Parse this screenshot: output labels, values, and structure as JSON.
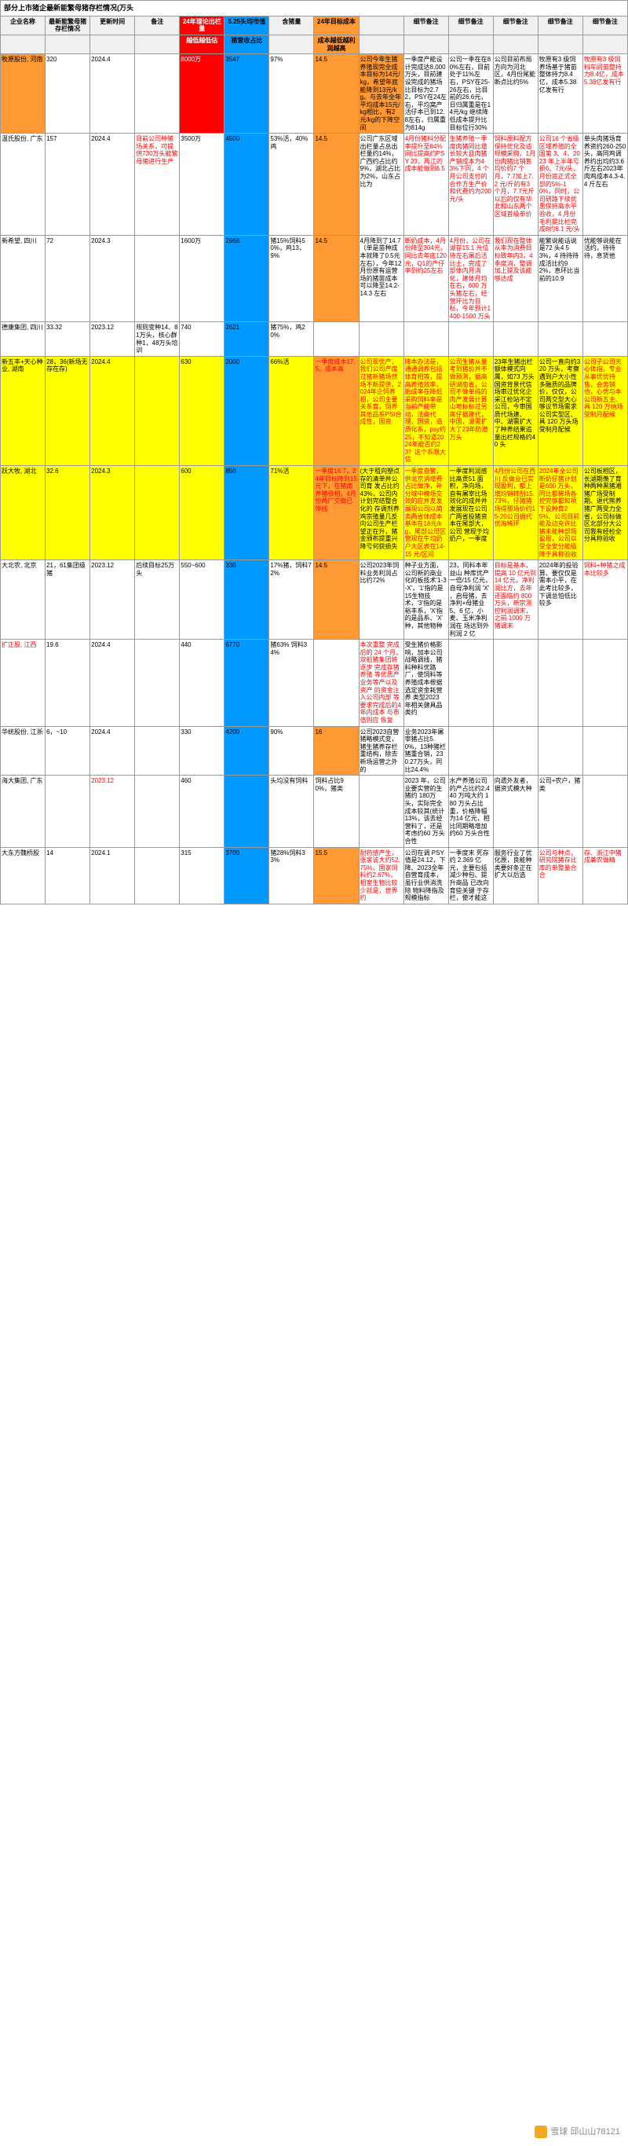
{
  "title": "部分上市猪企最新能繁母猪存栏情况(万头",
  "headers": [
    "企业名称",
    "最新能繁母猪存栏情况",
    "更新时间",
    "备注",
    "24年理论出栏量",
    "5.25头均市值",
    "含猪量",
    "24年目标成本",
    "",
    "细节备注",
    "细节备注",
    "细节备注",
    "细节备注",
    "细节备注"
  ],
  "sub": [
    "",
    "",
    "",
    "",
    "越低越低估",
    "猪营收占比",
    "",
    "成本越低越利润越高",
    "",
    "",
    "",
    "",
    "",
    ""
  ],
  "rows": [
    {
      "c": [
        "牧原股份, 河南",
        "320",
        "2024.4",
        "",
        "8000万",
        "3547",
        "97%",
        "14.5",
        "公司今年生猪养殖现完全成本目标为14元/kg，希望年底能降到13元/kg。与去年全年平均成本15元/kg相比，有2元/kg的下降空间",
        "一季度产能设计完成达8,000万头，目前建设完成的猪场比目标为2.72，PSY在24左右，平均窝产活仔本已到12.8左右，归属重为814g",
        "公司一季在在80%左右，目前处于11%左右，PSY在25-26左右，比目前的26.6元，日归属重是在14元/kg 继续降低成本提升比目标位行30%",
        "公司目前布局方向为河北区，4月份尾能断点比约5%",
        "牧原有3 级饲养场基于猪苗整体持力8.4亿，成本5.38亿发有行",
        "牧原有3 级饲料车间苗整持力8.4亿，成本5.38亿发有行"
      ],
      "bgRow": "",
      "bgCols": {
        "0": "bg-orange",
        "4": "bg-red",
        "5": "bg-blue",
        "7": "bg-orange",
        "8": "bg-orange"
      },
      "txt": {
        "13": "txt-red"
      }
    },
    {
      "c": [
        "温氏股份, 广东",
        "157",
        "2024.4",
        "目前公司种猪场关系，可提供730万头能繁母猪进行生产",
        "3500万",
        "4500",
        "53%活，40%鸡",
        "14.5",
        "公司广东区域出栏量占总出栏量约14%，广西约占比约9%，湖北占比为2%，山东占比为",
        "4月份猪料分配率提升至84%同比提高约PSY 23，两江的成本能做到6.5",
        "生猪养殖一季度肉猪同比增长较大且肉猪产销成本为43%下同，4 个月公司支付的合作方生产价和代费约为200 元/头",
        "饲料原料配方保持优化及适规模采购，1月份肉猪比销售均价约7 个月，7.7加上7.2 元/斤的有3 个月，7.7元斤以后的仅有华北和山东两个区域首级单价",
        "公司16 个省级区域养殖的全国第 3、4，2023 年上半年亏损6、7元/头，月份底正式全部的5%-10%，同时，公司研路下续优惠保持高水平验收，4 月份毛利提比栏完成8约6.1 元/头",
        "单头肉猪场育养资约260-250 头，高同鸡调养约出均约3.6 斤左右2023年肉鸡成本4.3-4.4 斤左右"
      ],
      "bgCols": {
        "5": "bg-blue",
        "7": "bg-orange"
      },
      "txt": {
        "3": "txt-red",
        "9": "txt-red",
        "10": "txt-red",
        "11": "txt-red",
        "12": "txt-red"
      }
    },
    {
      "c": [
        "新希望, 四川",
        "72",
        "2024.3",
        "",
        "1600万",
        "2968",
        "猪15%饲料50%，鸡13，9%",
        "14.5",
        "4月降到了14.7（单是苗种成本就降了0.5元左右），今年12月份原有运营场的猪苗成本可以降至14.2-14.3 左右",
        "断奶成本，4月份降至304元，同比去年底120元，Q1的产仔率到约25左右",
        "4月份，公司在湖存15.1 元位待左右屠后活比土，完成了部体内月消化，建体月均在右，600 万头猪左右，经营环比为目标，今年预计1400-1500 万头",
        "我们现在整体从率为消费目标致年内3，4季度消，整调加上提及该能够达成",
        "能繁说能话说是72 头4 53%，4 待待待成活比约92%，息环比当前的10.9",
        "优能够说能在活约，待待待，息货他"
      ],
      "bgCols": {
        "5": "bg-blue",
        "7": "bg-orange"
      },
      "txt": {
        "9": "txt-red",
        "10": "txt-red",
        "11": "txt-red"
      }
    },
    {
      "c": [
        "德康集团, 四川",
        "33.32",
        "2023.12",
        "规则变种14、81万头，核心群种1，48万头培训",
        "740",
        "2621",
        "猪75%，鸡20%",
        "",
        "",
        "",
        "",
        "",
        "",
        ""
      ],
      "bgCols": {
        "5": "bg-blue"
      }
    },
    {
      "c": [
        "新五丰+天心种业, 湖南",
        "28，36(新场无存在存)",
        "2024.4",
        "",
        "630",
        "2000",
        "66%活",
        "一季度成本17.5，成本高",
        "公司现优产，我们公司产度过猪新猪场然场不断提供，2024年企饲养相，公司主要关系育，饲养其他品系PSI合成性，国资",
        "降本办法是，通通调养包括体育相等，提高养殖效率，胎成率在降低采购饲料率是当前产能带动，法商代理，国资，造质化系，psy约25，不知道2024年能否约23？这个系限大信",
        "公司生猪从量考到猪价并不做预测，据高研湖南省，公司不做单纯的肉产发展计算山地标标过另高仔据建代，中国，湖需扩大了23年防潜万头",
        "23年生猪出栏额体模式向属，如73 万头国资背景代信场审过优化企采江检站不定公司，今审国质代场建、中、湖需扩大了种养结果追量出栏规格约40 头",
        "公司一直向约320 万头，考察遇到户大小性多融质的品牌价，仅仅，公司两交型大心够议节场需求公司实型区、具 120 万头场受制月配候",
        "公司子公司天心体指，专业从事优优待售，会务销也，心优与本公司新五主、具 120 万纳场受制月配候"
      ],
      "bgRow": "bg-yellow",
      "bgCols": {
        "5": "bg-blue",
        "7": "bg-orange"
      },
      "txt": {
        "7": "txt-red",
        "8": "txt-red",
        "9": "txt-red",
        "10": "txt-red",
        "13": "txt-red"
      }
    },
    {
      "c": [
        "跃大牧, 湖北",
        "32.6",
        "2024.3",
        "",
        "600",
        "850",
        "71%活",
        "一季度16.7，24年目标降到15元下，在猪南养猪很相，4月份两厂交做已停线",
        "(大于租向塑点存的清单并公司育 发占比约43%，公司内计划完结整合化的 存调剂养鸡宗殖量几反向公司生产栏望正在升，猪金颁布提重兴降亏何获损失",
        "一季度自繁，供北京消增费占比做净，补分域中模场交效的应并友发展现公司以简卖两省体成本基本在18元/kg，尾部公司区营现在牛均奶户大区表在14-15 元/区间",
        "一季度利润感比高贡51 面积，净向场，自有屠宰比场效化的成并并发展现在公司广两省投猪资本在尾部大，公司 营现于均奶户，一季度",
        "4月份公司在西川 反做业已实现盈利，都上增均销转刮15.73%，仔猪猪场得那场价约15-20公司据代优淘稀环",
        "2024年全公司断奶仔猪计划是600 万头，同比都稀场各控完够都知项下设种育25%、公司目前能及边充许比猪未能种部场盈现，公司以受全安分能级降于具称验收",
        "公司板相区，长湖期羡了育种两种黑猪湘猪广场受制期、退代熊养猪广两受力全省，公司标做区北部分大公司我有经检全分具称验收"
      ],
      "bgRow": "bg-yellow",
      "bgCols": {
        "5": "bg-blue",
        "7": "bg-orange"
      },
      "txt": {
        "7": "txt-red",
        "9": "txt-red",
        "11": "txt-red",
        "12": "txt-red"
      }
    },
    {
      "c": [
        "大北农, 北京",
        "21，61集团级猪",
        "2023.12",
        "后续目标25万头",
        "550~600",
        "330",
        "17%猪，饲料72%",
        "14.5",
        "公司2023年饲料业务利润占比约72%",
        "种子业方面，公司新的商业化的板技术'1-3-X'，'1'指的是 15生物技术，'3'指的是裕丰系，'X'指的是品系、'X' 种，其他物种",
        "23，同料本年益山 种库优产一倍/15 亿元，自母净利润 'X' ，启母猪，去净利+母猪业 5、6 亿，小麦、玉米净利润在 场达到外利润 2 亿",
        "目标是基本，提高 10 亿元到 14 亿元，净利润比方，去年还面临约 800 万头，新宗测控利润调末，之前 1000 万猪调末",
        "2024年的投验算、要仅仅是需本小平，在此考比较多，下调总怕低比较多",
        "饲料+种猪之成本比较多"
      ],
      "bgCols": {
        "5": "bg-blue",
        "7": "bg-orange"
      },
      "txt": {
        "11": "txt-red",
        "13": "txt-red"
      }
    },
    {
      "c": [
        "扩正股, 江西",
        "19.6",
        "2024.4",
        "",
        "440",
        "6770",
        "猪63% 饲料34%",
        "",
        "本次重整 完成后的 24 个月，双船猪集团将逐步 完成存猪养殖 等优质产业务等产以及资产 的资金注入公司内部 等要求完成后的4 年内成本 与市值则应 恢复",
        "受生猪价格影响，加本公司战略调线，猪料种料优路厂，使饲料等养殖成本根据选定资金耗营养 类型2023 年相关健具品类约",
        "",
        "",
        "",
        ""
      ],
      "bgCols": {
        "5": "bg-blue"
      },
      "txt": {
        "0": "txt-red",
        "8": "txt-red"
      }
    },
    {
      "c": [
        "华统股份, 江浙",
        "6，~10",
        "2024.4",
        "",
        "330",
        "4200",
        "90%",
        "16",
        "公司2023自营猪略模式变，猪生猪养存栏重结构，除去新场运营之外的",
        "业务2023年屠宰猪占比5.0%，13种猪栏猪重合销，230.27万头，同比24.4%",
        "",
        "",
        "",
        ""
      ],
      "bgCols": {
        "5": "bg-blue",
        "7": "bg-orange"
      }
    },
    {
      "c": [
        "海大集团, 广东",
        "",
        "2023.12",
        "",
        "460",
        "",
        "头均没有饲料",
        "饲料占比90%，猪类",
        "",
        "2023 年，公司业要实营的生猪约 180万头，实际完全成本较其(统计13%，该去经营料了，还是考虑约60 万头合性",
        "水产养殖公司的产占比约2,440 万吨大约 180 万头占比重，价格降幅为14 亿元，相比同期略增加约60 万头合性",
        "向遗外友者，据资式模大种",
        "公司+农户，猪类",
        ""
      ],
      "bgCols": {
        "5": "bg-blue"
      },
      "txt": {
        "2": "txt-red"
      }
    },
    {
      "c": [
        "大东方魏桥股",
        "14",
        "2024.1",
        "",
        "315",
        "3700",
        "猪28%饲料33%",
        "15.5",
        "耐药感产生，张家该大约52.75%，国家饲料约2.67%，相室生物比较少就是，世界约",
        "公司在调 PSY 值是24.12，下降、2023全年自营育成本，虽行业供消洗除 物料降指及规模指标",
        "一季度末 死存约 2.369 亿元，主要包括 减少种包、提升商品 已改向育些关键 于存栏，使才能这",
        "服务行业了优化原，良能种类要好条正在扩大以后选",
        "公司与种点，研究院猪存比库的单整量合合",
        "存、浙江中猪成兼农做精"
      ],
      "bgCols": {
        "5": "bg-blue",
        "7": "bg-orange"
      },
      "txt": {
        "8": "txt-red",
        "12": "txt-red",
        "13": "txt-red"
      }
    }
  ],
  "colWidths": [
    "50",
    "40",
    "40",
    "40",
    "50",
    "40",
    "45",
    "50",
    "60",
    "60",
    "60",
    "60",
    "60",
    "55"
  ],
  "watermark": "雪球 邱山山78121"
}
